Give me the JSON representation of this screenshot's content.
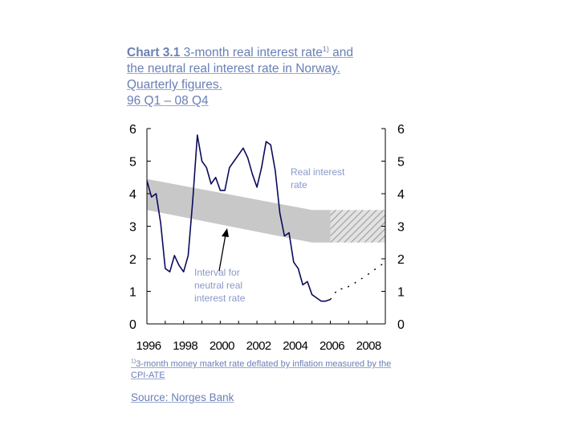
{
  "title": {
    "label": "Chart 3.1",
    "text_line1": "3-month real interest rate",
    "superscript": "1)",
    "text_line1_end": "and",
    "line2": "the neutral real interest rate in Norway.",
    "line3": "Quarterly figures.",
    "line4": "96 Q1 – 08 Q4"
  },
  "footnote": {
    "marker": "1)",
    "text": "3-month money market rate deflated by inflation measured by the CPI-ATE"
  },
  "source": {
    "label": "Source:",
    "text": "Norges Bank"
  },
  "colors": {
    "series_line": "#0a0a5c",
    "band_fill": "#c8c8c8",
    "hatch": "#a8a8a8",
    "annotation_text": "#8a98c8",
    "axis": "#000000"
  },
  "chart_data": {
    "type": "line",
    "x_range": [
      1996,
      2009
    ],
    "ylim": [
      0,
      6
    ],
    "yticks": [
      0,
      1,
      2,
      3,
      4,
      5,
      6
    ],
    "yticks_right": [
      0,
      1,
      2,
      3,
      4,
      5,
      6
    ],
    "xticks": [
      1996,
      1998,
      2000,
      2002,
      2004,
      2006,
      2008
    ],
    "xtick_labels": [
      "1996",
      "1998",
      "2000",
      "2002",
      "2004",
      "2006",
      "2008"
    ],
    "annotations": [
      {
        "name": "real-interest-rate-label",
        "lines": [
          "Real interest",
          "rate"
        ]
      },
      {
        "name": "neutral-interval-label",
        "lines": [
          "Interval for",
          "neutral real",
          "interest rate"
        ]
      }
    ],
    "series": [
      {
        "key": "real_rate_actual",
        "style": "solid",
        "x": [
          1996.0,
          1996.25,
          1996.5,
          1996.75,
          1997.0,
          1997.25,
          1997.5,
          1997.75,
          1998.0,
          1998.25,
          1998.5,
          1998.75,
          1999.0,
          1999.25,
          1999.5,
          1999.75,
          2000.0,
          2000.25,
          2000.5,
          2000.75,
          2001.0,
          2001.25,
          2001.5,
          2001.75,
          2002.0,
          2002.25,
          2002.5,
          2002.75,
          2003.0,
          2003.25,
          2003.5,
          2003.75,
          2004.0,
          2004.25,
          2004.5,
          2004.75,
          2005.0,
          2005.25,
          2005.5,
          2005.75,
          2006.0
        ],
        "y": [
          4.4,
          3.9,
          4.0,
          3.1,
          1.7,
          1.6,
          2.1,
          1.8,
          1.6,
          2.1,
          3.8,
          5.8,
          5.0,
          4.8,
          4.3,
          4.5,
          4.1,
          4.1,
          4.8,
          5.0,
          5.2,
          5.4,
          5.1,
          4.6,
          4.2,
          4.8,
          5.6,
          5.5,
          4.7,
          3.4,
          2.7,
          2.8,
          1.9,
          1.7,
          1.2,
          1.3,
          0.9,
          0.8,
          0.7,
          0.7,
          0.75
        ]
      },
      {
        "key": "real_rate_projection",
        "style": "dotted",
        "x": [
          2006.0,
          2006.25,
          2006.5,
          2006.75,
          2007.0,
          2007.25,
          2007.5,
          2007.75,
          2008.0,
          2008.25,
          2008.5,
          2008.75,
          2009.0
        ],
        "y": [
          0.75,
          0.95,
          1.1,
          1.05,
          1.15,
          1.2,
          1.35,
          1.4,
          1.5,
          1.6,
          1.7,
          1.8,
          1.9
        ]
      },
      {
        "key": "neutral_interval_upper",
        "style": "band",
        "x": [
          1996.0,
          2005.0,
          2009.0
        ],
        "y": [
          4.45,
          3.5,
          3.5
        ]
      },
      {
        "key": "neutral_interval_lower",
        "style": "band",
        "x": [
          1996.0,
          2005.0,
          2009.0
        ],
        "y": [
          3.5,
          2.5,
          2.5
        ]
      }
    ],
    "projection_hatch_from_x": 2006.0,
    "grid": false
  }
}
